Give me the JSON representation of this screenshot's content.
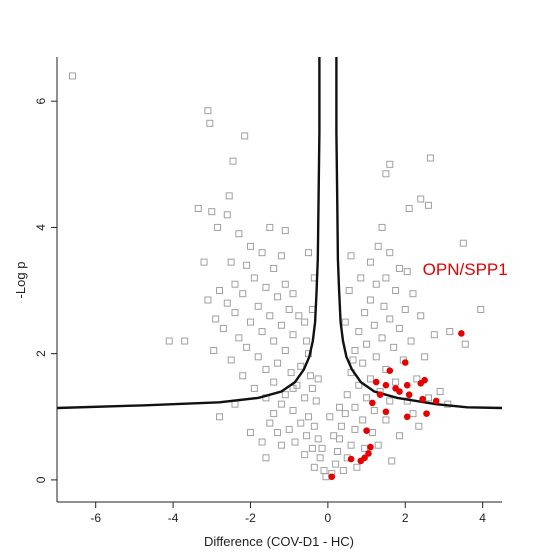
{
  "chart_data": {
    "type": "scatter",
    "title": "",
    "xlabel": "Difference (COV-D1 - HC)",
    "ylabel": "-Log p",
    "xlim": [
      -7.0,
      4.5
    ],
    "ylim": [
      -0.35,
      6.7
    ],
    "x_ticks": [
      -6,
      -4,
      -2,
      0,
      2,
      4
    ],
    "y_ticks": [
      0,
      2,
      4,
      6
    ],
    "grid": false,
    "legend": "none",
    "annotations": [
      {
        "text": "OPN/SPP1",
        "x": 2.45,
        "y": 3.25
      }
    ],
    "colors": {
      "background_points": "#a0a0a0",
      "highlight_points": "#e60000",
      "threshold_curve": "#111111"
    },
    "series": [
      {
        "marker": "open-square",
        "color": "#a0a0a0",
        "points": [
          [
            -6.6,
            6.4
          ],
          [
            -3.1,
            5.85
          ],
          [
            -3.05,
            5.65
          ],
          [
            -2.15,
            5.45
          ],
          [
            -2.45,
            5.05
          ],
          [
            -2.55,
            4.5
          ],
          [
            2.65,
            5.1
          ],
          [
            1.6,
            5.0
          ],
          [
            1.5,
            4.85
          ],
          [
            2.4,
            4.45
          ],
          [
            2.6,
            4.35
          ],
          [
            2.1,
            4.3
          ],
          [
            -3.35,
            4.3
          ],
          [
            -3.0,
            4.25
          ],
          [
            -2.6,
            4.2
          ],
          [
            -2.85,
            4.0
          ],
          [
            3.5,
            3.75
          ],
          [
            3.95,
            2.7
          ],
          [
            -3.7,
            2.2
          ],
          [
            -2.95,
            2.05
          ],
          [
            3.15,
            2.35
          ],
          [
            3.55,
            2.15
          ],
          [
            -4.1,
            2.2
          ],
          [
            -2.3,
            3.9
          ],
          [
            -1.5,
            4.0
          ],
          [
            -1.1,
            3.95
          ],
          [
            -2.0,
            3.7
          ],
          [
            -1.7,
            3.6
          ],
          [
            -1.2,
            3.55
          ],
          [
            -2.5,
            3.45
          ],
          [
            -2.1,
            3.4
          ],
          [
            -1.4,
            3.35
          ],
          [
            -3.2,
            3.45
          ],
          [
            -1.9,
            3.2
          ],
          [
            -2.4,
            3.1
          ],
          [
            -1.6,
            3.05
          ],
          [
            -1.1,
            3.1
          ],
          [
            -2.8,
            3.0
          ],
          [
            -2.2,
            2.95
          ],
          [
            -1.3,
            2.9
          ],
          [
            -0.9,
            2.95
          ],
          [
            -3.1,
            2.85
          ],
          [
            -2.6,
            2.8
          ],
          [
            -1.8,
            2.75
          ],
          [
            -1.0,
            2.7
          ],
          [
            -2.4,
            2.65
          ],
          [
            -1.5,
            2.6
          ],
          [
            -0.75,
            2.6
          ],
          [
            -2.9,
            2.55
          ],
          [
            -2.0,
            2.5
          ],
          [
            -1.2,
            2.45
          ],
          [
            -0.6,
            2.5
          ],
          [
            -2.7,
            2.4
          ],
          [
            -1.7,
            2.35
          ],
          [
            -0.9,
            2.3
          ],
          [
            -2.3,
            2.25
          ],
          [
            -1.4,
            2.2
          ],
          [
            -0.55,
            2.2
          ],
          [
            -2.1,
            2.1
          ],
          [
            -1.1,
            2.05
          ],
          [
            -0.5,
            2.0
          ],
          [
            -1.8,
            1.95
          ],
          [
            -1.3,
            1.85
          ],
          [
            -0.7,
            1.8
          ],
          [
            -2.5,
            1.9
          ],
          [
            -1.6,
            1.75
          ],
          [
            -0.95,
            1.7
          ],
          [
            -0.45,
            1.65
          ],
          [
            -2.2,
            1.65
          ],
          [
            -1.4,
            1.55
          ],
          [
            -0.8,
            1.5
          ],
          [
            -0.4,
            1.45
          ],
          [
            -1.9,
            1.45
          ],
          [
            -1.1,
            1.35
          ],
          [
            -0.6,
            1.3
          ],
          [
            -0.3,
            1.25
          ],
          [
            -1.6,
            1.3
          ],
          [
            -1.2,
            1.2
          ],
          [
            -2.4,
            1.2
          ],
          [
            -0.9,
            1.1
          ],
          [
            -0.5,
            1.0
          ],
          [
            -2.8,
            1.0
          ],
          [
            -0.7,
            0.9
          ],
          [
            -0.35,
            0.85
          ],
          [
            -1.5,
            0.9
          ],
          [
            -1.0,
            0.8
          ],
          [
            -0.55,
            0.7
          ],
          [
            -0.25,
            0.65
          ],
          [
            -0.85,
            0.6
          ],
          [
            -0.4,
            0.5
          ],
          [
            -1.2,
            0.55
          ],
          [
            -0.6,
            0.4
          ],
          [
            -0.2,
            0.35
          ],
          [
            -0.35,
            0.2
          ],
          [
            -0.1,
            0.15
          ],
          [
            -2.0,
            0.75
          ],
          [
            -1.7,
            0.6
          ],
          [
            -0.05,
            0.05
          ],
          [
            -1.4,
            1.05
          ],
          [
            -0.9,
            1.45
          ],
          [
            -1.6,
            0.35
          ],
          [
            -1.3,
            0.75
          ],
          [
            1.4,
            4.0
          ],
          [
            1.3,
            3.7
          ],
          [
            1.6,
            3.6
          ],
          [
            1.1,
            3.45
          ],
          [
            1.85,
            3.35
          ],
          [
            2.05,
            3.3
          ],
          [
            1.5,
            3.2
          ],
          [
            1.25,
            3.1
          ],
          [
            1.75,
            3.0
          ],
          [
            2.2,
            2.95
          ],
          [
            1.1,
            2.85
          ],
          [
            1.45,
            2.75
          ],
          [
            2.0,
            2.7
          ],
          [
            0.95,
            2.65
          ],
          [
            1.6,
            2.55
          ],
          [
            2.4,
            2.6
          ],
          [
            1.2,
            2.45
          ],
          [
            1.85,
            2.4
          ],
          [
            0.8,
            2.35
          ],
          [
            1.4,
            2.25
          ],
          [
            2.15,
            2.2
          ],
          [
            2.75,
            2.3
          ],
          [
            1.0,
            2.15
          ],
          [
            1.7,
            2.1
          ],
          [
            0.7,
            2.05
          ],
          [
            1.25,
            1.95
          ],
          [
            1.95,
            1.9
          ],
          [
            2.5,
            1.95
          ],
          [
            0.9,
            1.85
          ],
          [
            1.5,
            1.75
          ],
          [
            0.6,
            1.7
          ],
          [
            1.1,
            1.6
          ],
          [
            1.75,
            1.55
          ],
          [
            2.3,
            1.6
          ],
          [
            0.8,
            1.5
          ],
          [
            1.35,
            1.4
          ],
          [
            0.5,
            1.35
          ],
          [
            1.0,
            1.3
          ],
          [
            1.6,
            1.25
          ],
          [
            2.05,
            1.25
          ],
          [
            0.7,
            1.15
          ],
          [
            1.2,
            1.1
          ],
          [
            0.45,
            1.05
          ],
          [
            0.9,
            0.95
          ],
          [
            1.5,
            0.95
          ],
          [
            0.35,
            0.85
          ],
          [
            0.7,
            0.8
          ],
          [
            1.15,
            0.75
          ],
          [
            0.3,
            0.65
          ],
          [
            0.6,
            0.55
          ],
          [
            0.95,
            0.5
          ],
          [
            0.25,
            0.45
          ],
          [
            0.5,
            0.35
          ],
          [
            0.2,
            0.25
          ],
          [
            0.4,
            0.15
          ],
          [
            0.1,
            0.1
          ],
          [
            0.75,
            0.2
          ],
          [
            1.3,
            0.55
          ],
          [
            2.2,
            1.05
          ],
          [
            2.6,
            1.3
          ],
          [
            2.9,
            1.4
          ],
          [
            3.1,
            1.2
          ],
          [
            1.85,
            0.7
          ],
          [
            2.35,
            0.85
          ],
          [
            1.65,
            0.3
          ],
          [
            0.55,
            3.0
          ],
          [
            0.45,
            2.5
          ],
          [
            0.65,
            1.9
          ],
          [
            0.3,
            1.15
          ],
          [
            0.15,
            0.7
          ],
          [
            0.85,
            3.2
          ],
          [
            0.6,
            3.55
          ],
          [
            -0.35,
            3.2
          ],
          [
            -0.5,
            3.6
          ],
          [
            -0.4,
            2.7
          ],
          [
            -0.25,
            1.6
          ],
          [
            0.05,
            1.0
          ],
          [
            -0.15,
            0.5
          ]
        ]
      },
      {
        "marker": "filled-circle",
        "color": "#e60000",
        "points": [
          [
            3.45,
            2.32
          ],
          [
            2.0,
            1.86
          ],
          [
            1.6,
            1.73
          ],
          [
            2.5,
            1.58
          ],
          [
            2.4,
            1.53
          ],
          [
            1.25,
            1.55
          ],
          [
            1.5,
            1.5
          ],
          [
            2.05,
            1.5
          ],
          [
            1.75,
            1.45
          ],
          [
            1.85,
            1.4
          ],
          [
            2.1,
            1.35
          ],
          [
            1.35,
            1.35
          ],
          [
            2.45,
            1.28
          ],
          [
            2.8,
            1.25
          ],
          [
            1.15,
            1.22
          ],
          [
            1.5,
            1.08
          ],
          [
            2.05,
            1.0
          ],
          [
            2.55,
            1.05
          ],
          [
            1.0,
            0.78
          ],
          [
            1.1,
            0.52
          ],
          [
            1.05,
            0.42
          ],
          [
            0.85,
            0.3
          ],
          [
            0.95,
            0.35
          ],
          [
            0.6,
            0.33
          ],
          [
            0.1,
            0.05
          ]
        ]
      }
    ],
    "threshold_curves": [
      {
        "side": "left",
        "points": [
          [
            -0.22,
            6.7
          ],
          [
            -0.22,
            5.5
          ],
          [
            -0.24,
            4.5
          ],
          [
            -0.26,
            3.5
          ],
          [
            -0.29,
            3.0
          ],
          [
            -0.33,
            2.5
          ],
          [
            -0.39,
            2.2
          ],
          [
            -0.48,
            1.95
          ],
          [
            -0.62,
            1.75
          ],
          [
            -0.85,
            1.55
          ],
          [
            -1.2,
            1.4
          ],
          [
            -1.8,
            1.3
          ],
          [
            -2.8,
            1.23
          ],
          [
            -4.8,
            1.18
          ],
          [
            -7.0,
            1.14
          ]
        ]
      },
      {
        "side": "right",
        "points": [
          [
            0.22,
            6.7
          ],
          [
            0.22,
            5.5
          ],
          [
            0.24,
            4.5
          ],
          [
            0.26,
            3.5
          ],
          [
            0.29,
            3.0
          ],
          [
            0.33,
            2.5
          ],
          [
            0.39,
            2.2
          ],
          [
            0.48,
            1.95
          ],
          [
            0.62,
            1.75
          ],
          [
            0.85,
            1.55
          ],
          [
            1.2,
            1.4
          ],
          [
            1.8,
            1.3
          ],
          [
            2.8,
            1.2
          ],
          [
            3.6,
            1.15
          ],
          [
            4.5,
            1.14
          ]
        ]
      }
    ]
  }
}
